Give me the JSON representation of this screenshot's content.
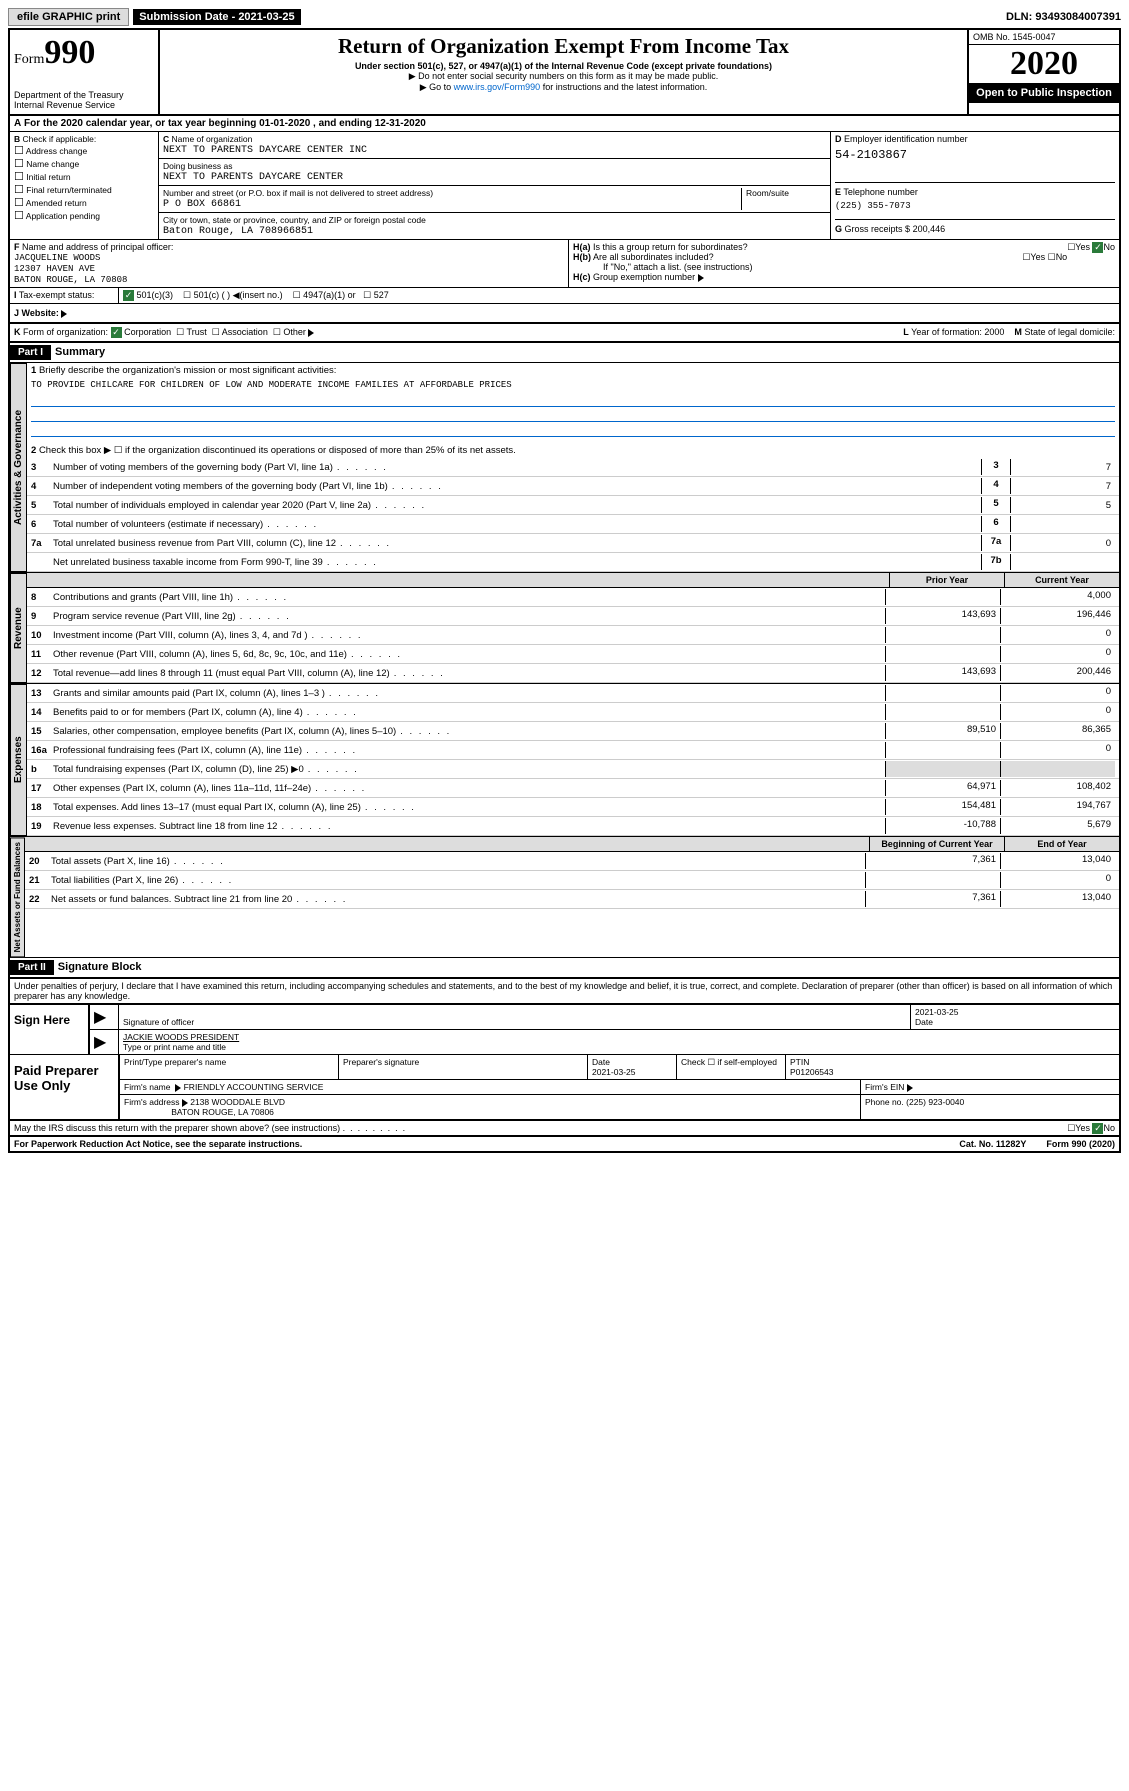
{
  "top": {
    "efile": "efile GRAPHIC print",
    "submission": "Submission Date - 2021-03-25",
    "dln": "DLN: 93493084007391"
  },
  "header": {
    "form": "Form",
    "form_num": "990",
    "dept": "Department of the Treasury\nInternal Revenue Service",
    "title": "Return of Organization Exempt From Income Tax",
    "sub1": "Under section 501(c), 527, or 4947(a)(1) of the Internal Revenue Code (except private foundations)",
    "sub2": "Do not enter social security numbers on this form as it may be made public.",
    "sub3_pre": "Go to ",
    "sub3_link": "www.irs.gov/Form990",
    "sub3_post": " for instructions and the latest information.",
    "omb": "OMB No. 1545-0047",
    "year": "2020",
    "open": "Open to Public Inspection"
  },
  "period": "For the 2020 calendar year, or tax year beginning 01-01-2020    , and ending 12-31-2020",
  "boxB": {
    "label": "Check if applicable:",
    "items": [
      "Address change",
      "Name change",
      "Initial return",
      "Final return/terminated",
      "Amended return",
      "Application pending"
    ]
  },
  "boxC": {
    "name_label": "Name of organization",
    "name": "NEXT TO PARENTS DAYCARE CENTER INC",
    "dba_label": "Doing business as",
    "dba": "NEXT TO PARENTS DAYCARE CENTER",
    "addr_label": "Number and street (or P.O. box if mail is not delivered to street address)",
    "room_label": "Room/suite",
    "addr": "P O BOX 66861",
    "city_label": "City or town, state or province, country, and ZIP or foreign postal code",
    "city": "Baton Rouge, LA  708966851"
  },
  "boxD": {
    "label": "Employer identification number",
    "val": "54-2103867"
  },
  "boxE": {
    "label": "Telephone number",
    "val": "(225) 355-7073"
  },
  "boxG": {
    "label": "Gross receipts $",
    "val": "200,446"
  },
  "boxF": {
    "label": "Name and address of principal officer:",
    "name": "JACQUELINE WOODS",
    "addr1": "12307 HAVEN AVE",
    "addr2": "BATON ROUGE, LA  70808"
  },
  "boxH": {
    "a": "Is this a group return for subordinates?",
    "b": "Are all subordinates included?",
    "note": "If \"No,\" attach a list. (see instructions)",
    "c": "Group exemption number"
  },
  "boxI": {
    "label": "Tax-exempt status:",
    "opt1": "501(c)(3)",
    "opt2": "501(c) (  )",
    "opt2b": "(insert no.)",
    "opt3": "4947(a)(1) or",
    "opt4": "527"
  },
  "boxJ": {
    "label": "Website:"
  },
  "boxK": {
    "label": "Form of organization:",
    "opts": [
      "Corporation",
      "Trust",
      "Association",
      "Other"
    ]
  },
  "boxL": {
    "label": "Year of formation:",
    "val": "2000"
  },
  "boxM": {
    "label": "State of legal domicile:"
  },
  "part1": {
    "hdr": "Part I",
    "title": "Summary",
    "line1": "Briefly describe the organization's mission or most significant activities:",
    "mission": "TO PROVIDE CHILCARE FOR CHILDREN OF LOW AND MODERATE INCOME FAMILIES AT AFFORDABLE PRICES",
    "line2": "Check this box ▶ ☐  if the organization discontinued its operations or disposed of more than 25% of its net assets.",
    "lines_gov": [
      {
        "n": "3",
        "t": "Number of voting members of the governing body (Part VI, line 1a)",
        "b": "3",
        "v": "7"
      },
      {
        "n": "4",
        "t": "Number of independent voting members of the governing body (Part VI, line 1b)",
        "b": "4",
        "v": "7"
      },
      {
        "n": "5",
        "t": "Total number of individuals employed in calendar year 2020 (Part V, line 2a)",
        "b": "5",
        "v": "5"
      },
      {
        "n": "6",
        "t": "Total number of volunteers (estimate if necessary)",
        "b": "6",
        "v": ""
      },
      {
        "n": "7a",
        "t": "Total unrelated business revenue from Part VIII, column (C), line 12",
        "b": "7a",
        "v": "0"
      },
      {
        "n": "",
        "t": "Net unrelated business taxable income from Form 990-T, line 39",
        "b": "7b",
        "v": ""
      }
    ],
    "col_prior": "Prior Year",
    "col_current": "Current Year",
    "lines_rev": [
      {
        "n": "8",
        "t": "Contributions and grants (Part VIII, line 1h)",
        "p": "",
        "c": "4,000"
      },
      {
        "n": "9",
        "t": "Program service revenue (Part VIII, line 2g)",
        "p": "143,693",
        "c": "196,446"
      },
      {
        "n": "10",
        "t": "Investment income (Part VIII, column (A), lines 3, 4, and 7d )",
        "p": "",
        "c": "0"
      },
      {
        "n": "11",
        "t": "Other revenue (Part VIII, column (A), lines 5, 6d, 8c, 9c, 10c, and 11e)",
        "p": "",
        "c": "0"
      },
      {
        "n": "12",
        "t": "Total revenue—add lines 8 through 11 (must equal Part VIII, column (A), line 12)",
        "p": "143,693",
        "c": "200,446"
      }
    ],
    "lines_exp": [
      {
        "n": "13",
        "t": "Grants and similar amounts paid (Part IX, column (A), lines 1–3 )",
        "p": "",
        "c": "0"
      },
      {
        "n": "14",
        "t": "Benefits paid to or for members (Part IX, column (A), line 4)",
        "p": "",
        "c": "0"
      },
      {
        "n": "15",
        "t": "Salaries, other compensation, employee benefits (Part IX, column (A), lines 5–10)",
        "p": "89,510",
        "c": "86,365"
      },
      {
        "n": "16a",
        "t": "Professional fundraising fees (Part IX, column (A), line 11e)",
        "p": "",
        "c": "0"
      },
      {
        "n": "b",
        "t": "Total fundraising expenses (Part IX, column (D), line 25) ▶0",
        "p": "",
        "c": "",
        "grey": true
      },
      {
        "n": "17",
        "t": "Other expenses (Part IX, column (A), lines 11a–11d, 11f–24e)",
        "p": "64,971",
        "c": "108,402"
      },
      {
        "n": "18",
        "t": "Total expenses. Add lines 13–17 (must equal Part IX, column (A), line 25)",
        "p": "154,481",
        "c": "194,767"
      },
      {
        "n": "19",
        "t": "Revenue less expenses. Subtract line 18 from line 12",
        "p": "-10,788",
        "c": "5,679"
      }
    ],
    "col_begin": "Beginning of Current Year",
    "col_end": "End of Year",
    "lines_net": [
      {
        "n": "20",
        "t": "Total assets (Part X, line 16)",
        "p": "7,361",
        "c": "13,040"
      },
      {
        "n": "21",
        "t": "Total liabilities (Part X, line 26)",
        "p": "",
        "c": "0"
      },
      {
        "n": "22",
        "t": "Net assets or fund balances. Subtract line 21 from line 20",
        "p": "7,361",
        "c": "13,040"
      }
    ],
    "vert_gov": "Activities & Governance",
    "vert_rev": "Revenue",
    "vert_exp": "Expenses",
    "vert_net": "Net Assets or Fund Balances"
  },
  "part2": {
    "hdr": "Part II",
    "title": "Signature Block",
    "perjury": "Under penalties of perjury, I declare that I have examined this return, including accompanying schedules and statements, and to the best of my knowledge and belief, it is true, correct, and complete. Declaration of preparer (other than officer) is based on all information of which preparer has any knowledge."
  },
  "sign": {
    "label": "Sign Here",
    "sig_officer": "Signature of officer",
    "date": "2021-03-25",
    "date_label": "Date",
    "name": "JACKIE WOODS PRESIDENT",
    "name_label": "Type or print name and title"
  },
  "paid": {
    "label": "Paid Preparer Use Only",
    "h1": "Print/Type preparer's name",
    "h2": "Preparer's signature",
    "h3": "Date",
    "h4": "Check ☐ if self-employed",
    "h5": "PTIN",
    "date": "2021-03-25",
    "ptin": "P01206543",
    "firm_label": "Firm's name",
    "firm": "FRIENDLY ACCOUNTING SERVICE",
    "ein_label": "Firm's EIN",
    "addr_label": "Firm's address",
    "addr1": "2138 WOODDALE BLVD",
    "addr2": "BATON ROUGE, LA  70806",
    "phone_label": "Phone no.",
    "phone": "(225) 923-0040"
  },
  "discuss": "May the IRS discuss this return with the preparer shown above? (see instructions)",
  "footer": {
    "pra": "For Paperwork Reduction Act Notice, see the separate instructions.",
    "cat": "Cat. No. 11282Y",
    "form": "Form 990 (2020)"
  },
  "yes": "Yes",
  "no": "No"
}
